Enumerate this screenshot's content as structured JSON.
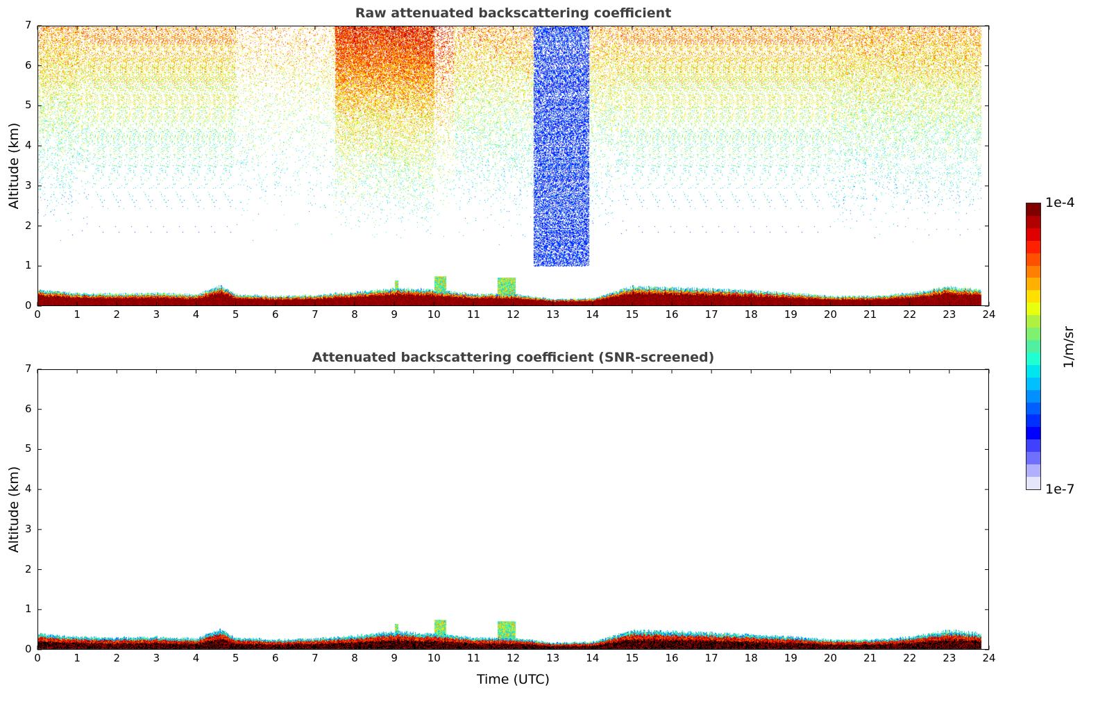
{
  "chart_data": [
    {
      "type": "heatmap",
      "title": "Raw attenuated backscattering coefficient",
      "xlabel": "",
      "ylabel": "Altitude (km)",
      "xlim": [
        0,
        24
      ],
      "ylim": [
        0,
        7
      ],
      "xticks": [
        0,
        1,
        2,
        3,
        4,
        5,
        6,
        7,
        8,
        9,
        10,
        11,
        12,
        13,
        14,
        15,
        16,
        17,
        18,
        19,
        20,
        21,
        22,
        23,
        24
      ],
      "yticks": [
        0,
        1,
        2,
        3,
        4,
        5,
        6,
        7
      ],
      "screened": false
    },
    {
      "type": "heatmap",
      "title": "Attenuated backscattering coefficient (SNR-screened)",
      "xlabel": "Time (UTC)",
      "ylabel": "Altitude (km)",
      "xlim": [
        0,
        24
      ],
      "ylim": [
        0,
        7
      ],
      "xticks": [
        0,
        1,
        2,
        3,
        4,
        5,
        6,
        7,
        8,
        9,
        10,
        11,
        12,
        13,
        14,
        15,
        16,
        17,
        18,
        19,
        20,
        21,
        22,
        23,
        24
      ],
      "yticks": [
        0,
        1,
        2,
        3,
        4,
        5,
        6,
        7
      ],
      "screened": true
    }
  ],
  "boundary_layer_top_km": {
    "hours": [
      0,
      1,
      2,
      3,
      4,
      4.6,
      5,
      6,
      7,
      8,
      9,
      10,
      11,
      12,
      13,
      14,
      15,
      16,
      17,
      18,
      19,
      20,
      21,
      22,
      23,
      23.8
    ],
    "values": [
      0.4,
      0.32,
      0.3,
      0.32,
      0.28,
      0.5,
      0.3,
      0.25,
      0.28,
      0.35,
      0.45,
      0.4,
      0.3,
      0.3,
      0.18,
      0.2,
      0.48,
      0.45,
      0.42,
      0.38,
      0.32,
      0.25,
      0.25,
      0.32,
      0.48,
      0.4
    ]
  },
  "data_end_hour": 23.8,
  "colorbar": {
    "label": "1/m/sr",
    "max_label": "1e-4",
    "min_label": "1e-7",
    "scale": "log",
    "range": [
      1e-07,
      0.0001
    ],
    "colors": [
      "#e6e6fa",
      "#b0b0ff",
      "#7070ff",
      "#4040ff",
      "#0000ff",
      "#0030ff",
      "#0060ff",
      "#0090ff",
      "#00c0ff",
      "#00e5ee",
      "#20ffd0",
      "#50f0a0",
      "#80f070",
      "#b0f040",
      "#e8ff10",
      "#ffe000",
      "#ffb000",
      "#ff8000",
      "#ff5000",
      "#ff2000",
      "#e00000",
      "#b00000",
      "#800000"
    ]
  }
}
